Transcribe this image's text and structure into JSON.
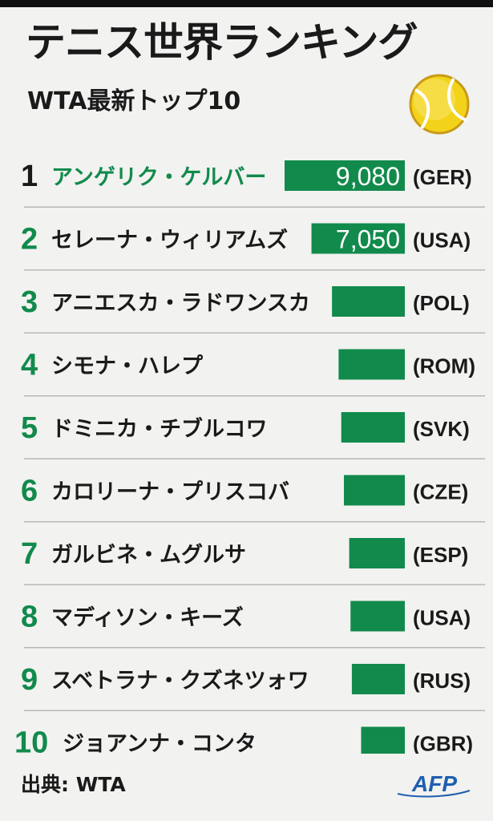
{
  "header": {
    "title": "テニス世界ランキング",
    "subtitle": "WTA最新トップ10"
  },
  "footer": {
    "source": "出典: WTA",
    "logo": "AFP"
  },
  "colors": {
    "bar": "#118a4c",
    "accent_text": "#118a4c",
    "rank": "#118a4c",
    "text": "#1a1a1a",
    "divider": "#b8b8b8"
  },
  "icons": [
    "tennis-ball-icon"
  ],
  "chart_data": {
    "type": "bar",
    "orientation": "horizontal",
    "categories": [
      "アンゲリク・ケルバー",
      "セレーナ・ウィリアムズ",
      "アニエスカ・ラドワンスカ",
      "シモナ・ハレプ",
      "ドミニカ・チブルコワ",
      "カロリーナ・プリスコバ",
      "ガルビネ・ムグルサ",
      "マディソン・キーズ",
      "スベトラナ・クズネツォワ",
      "ジョアンナ・コンタ"
    ],
    "ranks": [
      "1",
      "2",
      "3",
      "4",
      "5",
      "6",
      "7",
      "8",
      "9",
      "10"
    ],
    "countries": [
      "(GER)",
      "(USA)",
      "(POL)",
      "(ROM)",
      "(SVK)",
      "(CZE)",
      "(ESP)",
      "(USA)",
      "(RUS)",
      "(GBR)"
    ],
    "values": [
      9080,
      7050,
      5500,
      5000,
      4800,
      4600,
      4200,
      4100,
      4000,
      3300
    ],
    "value_labels": [
      "9,080",
      "7,050",
      "",
      "",
      "",
      "",
      "",
      "",
      "",
      ""
    ],
    "highlight_index": 0,
    "xlim": [
      0,
      9080
    ]
  }
}
